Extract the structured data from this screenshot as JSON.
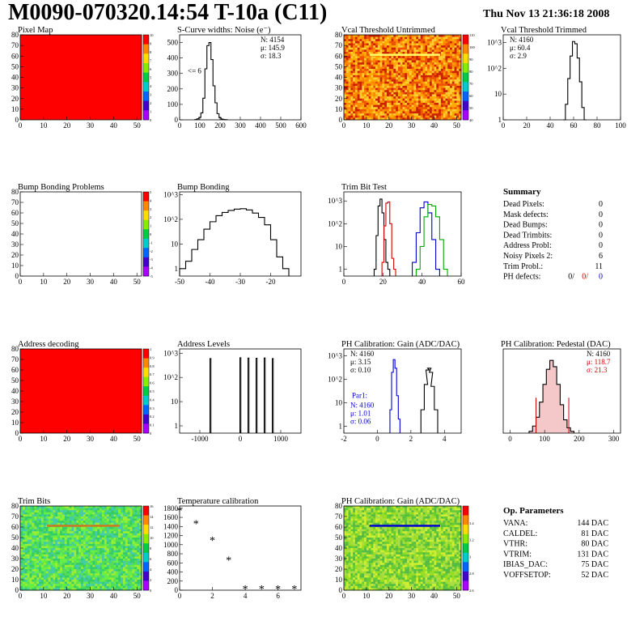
{
  "header": {
    "title": "M0090-070320.14:54 T-10a (C11)",
    "date": "Thu Nov 13 21:36:18 2008"
  },
  "chart_data": [
    {
      "id": "pixel-map",
      "type": "heatmap",
      "title": "Pixel Map",
      "xlim": [
        0,
        52
      ],
      "ylim": [
        0,
        80
      ],
      "xticks": [
        0,
        10,
        20,
        30,
        40,
        50
      ],
      "yticks": [
        0,
        10,
        20,
        30,
        40,
        50,
        60,
        70,
        80
      ],
      "fill": "uniform",
      "fill_color": "#ff0000",
      "colorbar": {
        "min": 0,
        "max": 10,
        "ticks": [
          0,
          1,
          2,
          3,
          4,
          5,
          6,
          7,
          8,
          9,
          10
        ]
      }
    },
    {
      "id": "scurve-widths",
      "type": "histogram",
      "title": "S-Curve widths: Noise (e⁻)",
      "xlim": [
        0,
        600
      ],
      "ylim": [
        0,
        550
      ],
      "xticks": [
        0,
        100,
        200,
        300,
        400,
        500,
        600
      ],
      "yticks": [
        0,
        100,
        200,
        300,
        400,
        500
      ],
      "x": [
        80,
        90,
        100,
        110,
        120,
        130,
        140,
        150,
        160,
        170,
        180,
        190,
        200,
        210,
        220,
        230
      ],
      "values": [
        2,
        6,
        15,
        45,
        140,
        330,
        480,
        500,
        390,
        220,
        110,
        40,
        14,
        5,
        2,
        1
      ],
      "annotation": "<= 6",
      "stats": {
        "N": "4154",
        "mean": "145.9",
        "sigma": "18.3"
      }
    },
    {
      "id": "vcal-untrimmed",
      "type": "heatmap",
      "title": "Vcal Threshold Untrimmed",
      "xlim": [
        0,
        52
      ],
      "ylim": [
        0,
        80
      ],
      "xticks": [
        0,
        10,
        20,
        30,
        40,
        50
      ],
      "yticks": [
        0,
        10,
        20,
        30,
        40,
        50,
        60,
        70,
        80
      ],
      "fill": "noise",
      "palette": [
        "#cc2200",
        "#ee5500",
        "#ff8800",
        "#ffaa00",
        "#ffcc33"
      ],
      "highlight_row": 61,
      "highlight_color": "#ffff66",
      "colorbar": {
        "min": 40,
        "max": 110,
        "ticks": [
          40,
          50,
          60,
          70,
          80,
          90,
          100,
          110
        ]
      }
    },
    {
      "id": "vcal-trimmed",
      "type": "histogram",
      "title": "Vcal Threshold Trimmed",
      "xlim": [
        0,
        100
      ],
      "log": true,
      "ylog": [
        1,
        2000
      ],
      "xticks": [
        0,
        20,
        40,
        60,
        80,
        100
      ],
      "yticks": [
        1,
        10,
        100,
        1000
      ],
      "x": [
        52,
        54,
        56,
        58,
        60,
        62,
        64,
        66,
        68,
        70
      ],
      "values": [
        1,
        4,
        40,
        300,
        1100,
        900,
        250,
        30,
        3,
        1
      ],
      "stats": {
        "N": "4160",
        "mean": "60.4",
        "sigma": "2.9"
      }
    },
    {
      "id": "bump-bonding-problems",
      "type": "heatmap",
      "title": "Bump Bonding Problems",
      "xlim": [
        0,
        52
      ],
      "ylim": [
        0,
        80
      ],
      "xticks": [
        0,
        10,
        20,
        30,
        40,
        50
      ],
      "yticks": [
        0,
        10,
        20,
        30,
        40,
        50,
        60,
        70,
        80
      ],
      "fill": "none",
      "colorbar": {
        "min": -5,
        "max": 5,
        "ticks": [
          -5,
          -4,
          -3,
          -2,
          -1,
          0,
          1,
          2,
          3,
          4,
          5
        ]
      }
    },
    {
      "id": "bump-bonding",
      "type": "histogram",
      "title": "Bump Bonding",
      "xlim": [
        -50,
        -10
      ],
      "log": true,
      "ylog": [
        0.5,
        1300
      ],
      "xticks": [
        -50,
        -40,
        -30,
        -20
      ],
      "yticks": [
        1,
        10,
        100,
        1000
      ],
      "x": [
        -49,
        -47,
        -45,
        -43,
        -41,
        -39,
        -37,
        -35,
        -33,
        -31,
        -29,
        -27,
        -25,
        -23,
        -21,
        -19,
        -17,
        -15
      ],
      "values": [
        1,
        2,
        6,
        15,
        40,
        80,
        140,
        190,
        230,
        260,
        270,
        240,
        180,
        120,
        60,
        15,
        3,
        1
      ]
    },
    {
      "id": "trim-bit-test",
      "type": "histogram",
      "title": "Trim Bit Test",
      "xlim": [
        0,
        60
      ],
      "log": true,
      "ylog": [
        0.5,
        2500
      ],
      "xticks": [
        0,
        20,
        40,
        60
      ],
      "yticks": [
        1,
        10,
        100,
        1000
      ],
      "series": [
        {
          "color": "#000000",
          "x": [
            16,
            17,
            18,
            19,
            20,
            21,
            22,
            23
          ],
          "values": [
            1,
            30,
            600,
            1200,
            300,
            20,
            2,
            1
          ]
        },
        {
          "color": "#cc0000",
          "x": [
            20,
            21,
            22,
            23,
            24,
            25,
            26
          ],
          "values": [
            2,
            80,
            800,
            900,
            100,
            3,
            1
          ]
        },
        {
          "color": "#0000cc",
          "x": [
            36,
            38,
            40,
            42,
            44,
            46,
            48
          ],
          "values": [
            2,
            40,
            500,
            900,
            300,
            20,
            1
          ]
        },
        {
          "color": "#00aa00",
          "x": [
            38,
            40,
            42,
            44,
            46,
            48,
            50,
            52
          ],
          "values": [
            1,
            10,
            200,
            700,
            600,
            200,
            20,
            1
          ]
        }
      ]
    },
    {
      "id": "address-decoding",
      "type": "heatmap",
      "title": "Address decoding",
      "xlim": [
        0,
        52
      ],
      "ylim": [
        0,
        80
      ],
      "xticks": [
        0,
        10,
        20,
        30,
        40,
        50
      ],
      "yticks": [
        0,
        10,
        20,
        30,
        40,
        50,
        60,
        70,
        80
      ],
      "fill": "uniform",
      "fill_color": "#ff0000",
      "colorbar": {
        "min": 0,
        "max": 1,
        "ticks": [
          0,
          0.1,
          0.2,
          0.3,
          0.4,
          0.5,
          0.6,
          0.7,
          0.8,
          0.9,
          1
        ]
      }
    },
    {
      "id": "address-levels",
      "type": "histogram",
      "title": "Address Levels",
      "xlim": [
        -1500,
        1500
      ],
      "log": true,
      "ylog": [
        0.5,
        1500
      ],
      "xticks": [
        -1000,
        0,
        1000
      ],
      "yticks": [
        1,
        10,
        100,
        1000
      ],
      "spikes": [
        -750,
        -10,
        190,
        390,
        590,
        790
      ],
      "spike_heights": [
        600,
        650,
        630,
        620,
        640,
        600
      ]
    },
    {
      "id": "ph-gain",
      "type": "histogram",
      "title": "PH Calibration: Gain (ADC/DAC)",
      "xlim": [
        -2,
        5
      ],
      "log": true,
      "ylog": [
        0.5,
        2000
      ],
      "xticks": [
        -2,
        0,
        2,
        4
      ],
      "yticks": [
        1,
        10,
        100,
        1000
      ],
      "series": [
        {
          "color": "#0000cc",
          "x": [
            0.8,
            0.9,
            1.0,
            1.1,
            1.2,
            1.3
          ],
          "values": [
            5,
            200,
            700,
            300,
            20,
            2
          ]
        },
        {
          "color": "#000000",
          "x": [
            2.7,
            2.9,
            3.0,
            3.1,
            3.2,
            3.3,
            3.5
          ],
          "values": [
            5,
            60,
            250,
            300,
            200,
            50,
            5
          ]
        }
      ],
      "stats": {
        "N": "4160",
        "mean": "3.15",
        "sigma": "0.10"
      },
      "stats2": {
        "label": "Par1:",
        "N": "4160",
        "mean": "1.01",
        "sigma": "0.06"
      }
    },
    {
      "id": "ph-pedestal",
      "type": "histogram",
      "title": "PH Calibration: Pedestal (DAC)",
      "xlim": [
        -20,
        320
      ],
      "ylim": [
        0,
        95
      ],
      "xticks": [
        0,
        100,
        200,
        300
      ],
      "x": [
        60,
        70,
        80,
        90,
        100,
        110,
        120,
        130,
        140,
        150,
        160,
        170,
        180
      ],
      "values": [
        2,
        8,
        18,
        35,
        55,
        72,
        82,
        75,
        55,
        32,
        15,
        6,
        2
      ],
      "stats": {
        "N": "4160",
        "mean": "118.7",
        "sigma": "21.3"
      }
    },
    {
      "id": "trim-bits",
      "type": "heatmap",
      "title": "Trim Bits",
      "xlim": [
        0,
        52
      ],
      "ylim": [
        0,
        80
      ],
      "xticks": [
        0,
        10,
        20,
        30,
        40,
        50
      ],
      "yticks": [
        0,
        10,
        20,
        30,
        40,
        50,
        60,
        70,
        80
      ],
      "fill": "noise",
      "palette": [
        "#33cc66",
        "#55dd55",
        "#66ee44",
        "#99ee33",
        "#44ccaa"
      ],
      "highlight_row": 61,
      "highlight_color": "#cc7722",
      "colorbar": {
        "min": 0,
        "max": 16,
        "ticks": [
          0,
          2,
          4,
          6,
          8,
          10,
          12,
          14,
          16
        ]
      }
    },
    {
      "id": "temperature-calibration",
      "type": "scatter",
      "title": "Temperature calibration",
      "xlim": [
        0,
        7.4
      ],
      "ylim": [
        0,
        1850
      ],
      "xticks": [
        0,
        2,
        4,
        6
      ],
      "yticks": [
        0,
        200,
        400,
        600,
        800,
        1000,
        1200,
        1400,
        1600,
        1800
      ],
      "x": [
        0,
        1,
        2,
        3,
        4,
        5,
        6,
        7
      ],
      "values": [
        1750,
        1470,
        1100,
        670,
        40,
        40,
        40,
        40
      ]
    },
    {
      "id": "ph-gain-map",
      "type": "heatmap",
      "title": "PH Calibration: Gain (ADC/DAC)",
      "xlim": [
        0,
        52
      ],
      "ylim": [
        0,
        80
      ],
      "xticks": [
        0,
        10,
        20,
        30,
        40,
        50
      ],
      "yticks": [
        0,
        10,
        20,
        30,
        40,
        50,
        60,
        70,
        80
      ],
      "fill": "noise",
      "palette": [
        "#66cc33",
        "#99dd22",
        "#ccee33",
        "#aadd44",
        "#55bb44"
      ],
      "highlight_row": 61,
      "highlight_color": "#0000cc",
      "colorbar": {
        "min": 2.6,
        "max": 3.6,
        "ticks": [
          2.6,
          2.8,
          3,
          3.2,
          3.4
        ]
      }
    }
  ],
  "summary": {
    "title": "Summary",
    "rows": [
      {
        "label": "Dead Pixels:",
        "value": "0"
      },
      {
        "label": "Mask defects:",
        "value": "0"
      },
      {
        "label": "Dead Bumps:",
        "value": "0"
      },
      {
        "label": "Dead Trimbits:",
        "value": "0"
      },
      {
        "label": "Address Probl:",
        "value": "0"
      },
      {
        "label": "Noisy Pixels 2:",
        "value": "6"
      },
      {
        "label": "Trim Probl.:",
        "value": "11"
      }
    ],
    "ph": {
      "label": "PH defects:",
      "v1": "0/",
      "v2": "0/",
      "v3": "0"
    }
  },
  "parameters": {
    "title": "Op. Parameters",
    "rows": [
      {
        "label": "VANA:",
        "value": "144 DAC"
      },
      {
        "label": "CALDEL:",
        "value": "81 DAC"
      },
      {
        "label": "VTHR:",
        "value": "80 DAC"
      },
      {
        "label": "VTRIM:",
        "value": "131 DAC"
      },
      {
        "label": "IBIAS_DAC:",
        "value": "75 DAC"
      },
      {
        "label": "VOFFSETOP:",
        "value": "52 DAC"
      }
    ]
  }
}
